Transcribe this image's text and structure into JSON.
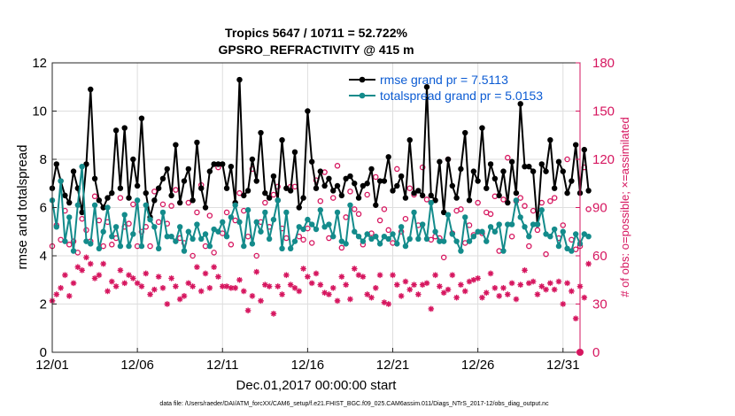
{
  "chart_data": {
    "type": "line",
    "title_line1": "Tropics 5647 / 10711 = 52.722%",
    "title_line2": "GPSRO_REFRACTIVITY @ 415 m",
    "xlabel": "Dec.01,2017 00:00:00 start",
    "ylabel_left": "rmse and totalspread",
    "ylabel_right": "# of obs: o=possible; ×=assimilated",
    "xlim": [
      1,
      32
    ],
    "ylim_left": [
      0,
      12
    ],
    "ylim_right": [
      0,
      180
    ],
    "x_ticks": [
      {
        "value": 1,
        "label": "12/01"
      },
      {
        "value": 6,
        "label": "12/06"
      },
      {
        "value": 11,
        "label": "12/11"
      },
      {
        "value": 16,
        "label": "12/16"
      },
      {
        "value": 21,
        "label": "12/21"
      },
      {
        "value": 26,
        "label": "12/26"
      },
      {
        "value": 31,
        "label": "12/31"
      }
    ],
    "y_ticks_left": [
      "0",
      "2",
      "4",
      "6",
      "8",
      "10",
      "12"
    ],
    "y_ticks_right": [
      "0",
      "30",
      "60",
      "90",
      "120",
      "150",
      "180"
    ],
    "legend": [
      {
        "label": "rmse grand pr = 7.5113",
        "color": "#000000"
      },
      {
        "label": "totalspread grand pr = 5.0153",
        "color": "#138b8b"
      }
    ],
    "colors": {
      "rmse": "#000000",
      "spread": "#138b8b",
      "obs": "#d6165f"
    },
    "x_start": 1,
    "x_step": 0.25,
    "series": [
      {
        "name": "rmse",
        "axis": "left",
        "values": [
          6.8,
          7.8,
          7.1,
          6.5,
          6.2,
          7.5,
          6.8,
          5.8,
          7.8,
          10.9,
          7.2,
          6.3,
          6.0,
          6.4,
          6.6,
          9.2,
          6.8,
          9.3,
          6.4,
          8.0,
          6.9,
          9.7,
          6.6,
          5.6,
          6.3,
          6.8,
          7.2,
          7.6,
          6.5,
          8.6,
          6.2,
          7.1,
          7.6,
          6.3,
          8.7,
          6.8,
          6.0,
          7.5,
          7.8,
          7.8,
          7.8,
          6.8,
          7.7,
          6.2,
          11.3,
          6.5,
          6.7,
          8.0,
          7.1,
          9.1,
          6.6,
          6.4,
          7.3,
          6.3,
          8.8,
          6.8,
          6.7,
          8.3,
          6.0,
          6.4,
          10.0,
          7.9,
          6.8,
          7.5,
          6.9,
          7.2,
          6.7,
          6.9,
          6.5,
          7.2,
          7.3,
          7.0,
          6.4,
          6.9,
          7.0,
          7.6,
          6.1,
          7.1,
          7.1,
          8.1,
          6.7,
          6.9,
          7.3,
          6.4,
          8.8,
          6.6,
          6.7,
          6.5,
          11.0,
          6.5,
          6.3,
          7.9,
          5.8,
          8.0,
          6.9,
          6.4,
          7.6,
          9.1,
          6.3,
          7.5,
          7.1,
          9.3,
          6.8,
          7.8,
          7.2,
          6.5,
          7.5,
          6.2,
          7.9,
          6.6,
          10.3,
          7.7,
          7.7,
          7.5,
          5.3,
          7.8,
          7.5,
          8.8,
          6.8,
          7.9,
          7.5,
          6.6,
          7.1,
          8.6,
          6.6,
          8.4,
          6.7
        ],
        "markers": {
          "type": "dot",
          "filled": true
        }
      },
      {
        "name": "totalspread",
        "axis": "left",
        "values": [
          6.3,
          5.2,
          7.1,
          4.6,
          5.6,
          4.2,
          6.1,
          7.7,
          4.6,
          4.5,
          6.1,
          4.3,
          5.0,
          6.0,
          4.8,
          5.2,
          4.4,
          5.7,
          4.4,
          4.9,
          6.3,
          4.4,
          6.1,
          5.5,
          5.2,
          4.3,
          5.8,
          4.8,
          4.8,
          4.6,
          5.2,
          4.2,
          5.0,
          4.7,
          5.3,
          4.7,
          4.9,
          4.4,
          5.1,
          5.0,
          5.4,
          4.8,
          5.6,
          6.1,
          5.4,
          4.4,
          5.9,
          4.5,
          5.4,
          5.0,
          5.8,
          4.7,
          5.5,
          6.3,
          4.3,
          5.8,
          4.3,
          4.6,
          5.2,
          5.1,
          5.5,
          5.3,
          5.1,
          5.9,
          5.2,
          5.3,
          4.8,
          5.8,
          4.6,
          4.5,
          6.1,
          5.0,
          4.8,
          4.6,
          4.9,
          4.7,
          4.8,
          4.5,
          4.8,
          4.7,
          4.9,
          4.5,
          5.2,
          4.4,
          4.7,
          5.8,
          4.7,
          5.3,
          4.7,
          6.2,
          5.0,
          4.6,
          4.6,
          5.7,
          4.9,
          4.6,
          4.2,
          5.6,
          4.6,
          4.8,
          5.0,
          5.0,
          4.6,
          5.2,
          5.0,
          5.3,
          4.2,
          5.3,
          5.3,
          6.3,
          5.6,
          5.2,
          4.8,
          5.3,
          5.3,
          5.9,
          4.9,
          4.8,
          5.1,
          4.4,
          5.0,
          4.3,
          4.2,
          4.9,
          4.5,
          4.9,
          4.8
        ],
        "markers": {
          "type": "dot",
          "filled": true
        }
      },
      {
        "name": "obs possible",
        "axis": "right",
        "values": [
          66,
          79,
          70,
          88,
          67,
          69,
          62,
          83,
          76,
          69,
          97,
          82,
          66,
          81,
          67,
          71,
          96,
          78,
          80,
          92,
          66,
          75,
          78,
          66,
          100,
          81,
          92,
          80,
          91,
          101,
          71,
          68,
          93,
          60,
          87,
          104,
          66,
          85,
          62,
          115,
          74,
          87,
          67,
          82,
          99,
          88,
          72,
          114,
          60,
          81,
          93,
          78,
          98,
          103,
          77,
          71,
          103,
          103,
          72,
          70,
          77,
          68,
          107,
          94,
          112,
          71,
          96,
          116,
          65,
          84,
          100,
          89,
          86,
          67,
          98,
          74,
          109,
          82,
          89,
          76,
          68,
          114,
          75,
          83,
          102,
          98,
          79,
          115,
          95,
          70,
          72,
          71,
          59,
          120,
          74,
          88,
          89,
          68,
          79,
          73,
          93,
          74,
          87,
          86,
          97,
          63,
          95,
          121,
          72,
          94,
          96,
          91,
          66,
          88,
          76,
          93,
          61,
          94,
          96,
          71,
          79,
          120,
          70,
          64,
          66,
          115,
          89
        ],
        "markers": {
          "type": "circle",
          "filled": false
        }
      },
      {
        "name": "obs assimilated",
        "axis": "right",
        "values": [
          32,
          36,
          40,
          48,
          35,
          43,
          53,
          51,
          59,
          55,
          46,
          48,
          55,
          38,
          44,
          41,
          51,
          43,
          48,
          46,
          43,
          41,
          49,
          36,
          39,
          47,
          40,
          30,
          46,
          41,
          33,
          35,
          43,
          41,
          53,
          38,
          49,
          40,
          53,
          47,
          41,
          41,
          40,
          40,
          45,
          38,
          26,
          35,
          50,
          32,
          42,
          41,
          24,
          41,
          36,
          48,
          42,
          40,
          38,
          52,
          47,
          43,
          49,
          42,
          37,
          36,
          40,
          32,
          47,
          42,
          33,
          52,
          48,
          47,
          36,
          34,
          40,
          48,
          31,
          30,
          48,
          42,
          35,
          44,
          39,
          42,
          36,
          42,
          43,
          27,
          48,
          41,
          37,
          39,
          48,
          34,
          42,
          38,
          44,
          45,
          46,
          34,
          37,
          49,
          40,
          35,
          40,
          36,
          43,
          33,
          42,
          51,
          43,
          44,
          36,
          41,
          39,
          43,
          39,
          44,
          30,
          43,
          38,
          21,
          41,
          34,
          55
        ],
        "markers": {
          "type": "asterisk",
          "filled": false
        }
      }
    ],
    "grid": true
  },
  "footer": "data file: /Users/raeder/DAI/ATM_forcXX/CAM6_setup/f.e21.FHIST_BGC.f09_025.CAM6assim.011/Diags_NTrS_2017-12/obs_diag_output.nc"
}
